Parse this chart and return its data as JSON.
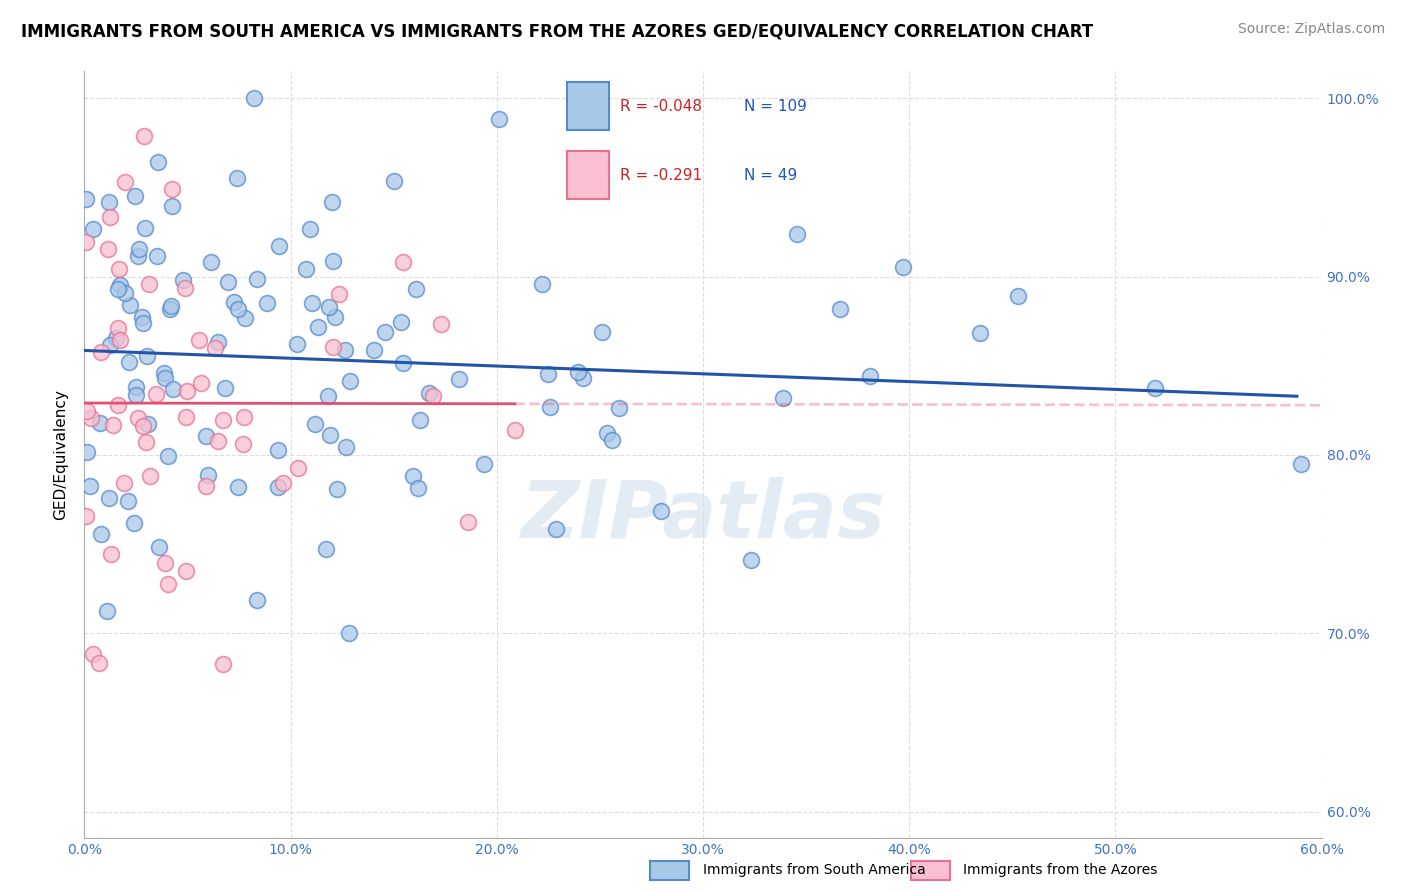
{
  "title": "IMMIGRANTS FROM SOUTH AMERICA VS IMMIGRANTS FROM THE AZORES GED/EQUIVALENCY CORRELATION CHART",
  "source": "Source: ZipAtlas.com",
  "ylabel": "GED/Equivalency",
  "ylabel_right_ticks": [
    "100.0%",
    "90.0%",
    "80.0%",
    "70.0%",
    "60.0%"
  ],
  "ylabel_right_vals": [
    1.0,
    0.9,
    0.8,
    0.7,
    0.6
  ],
  "xlim": [
    0.0,
    0.6
  ],
  "ylim": [
    0.585,
    1.015
  ],
  "R_blue": -0.048,
  "N_blue": 109,
  "R_pink": -0.291,
  "N_pink": 49,
  "blue_color": "#a8c8e8",
  "blue_edge_color": "#5588cc",
  "blue_line_color": "#2255aa",
  "pink_color": "#f8c0d0",
  "pink_edge_color": "#e87090",
  "pink_line_color": "#e05070",
  "legend_label_blue": "Immigrants from South America",
  "legend_label_pink": "Immigrants from the Azores",
  "watermark": "ZIPatlas",
  "background_color": "#ffffff",
  "grid_color": "#dddddd",
  "title_fontsize": 12,
  "source_fontsize": 10,
  "axis_label_fontsize": 11,
  "tick_fontsize": 10
}
